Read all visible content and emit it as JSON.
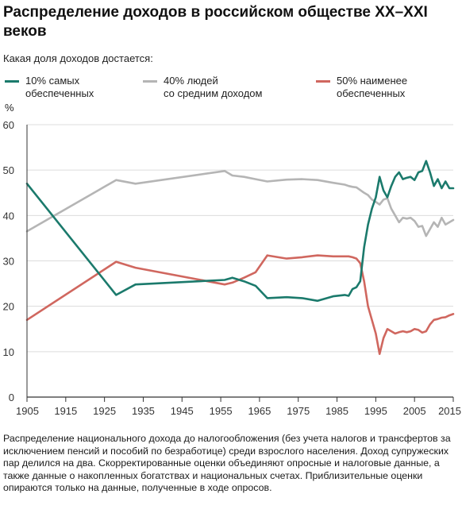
{
  "title": "Распределение доходов в российском обществе XX–XXI веков",
  "subtitle": "Какая доля доходов достается:",
  "unit": "%",
  "note": "Распределение национального дохода до налогообложения (без учета налогов и трансфертов за исключением пенсий и пособий по безработице) среди взрослого населения. Доход супружеских пар делился на два. Скорректированные оценки объединяют опросные и налоговые данные, а также данные о накопленных богатствах и национальных счетах. Приблизительные оценки опираются только на данные, полученные в ходе опросов.",
  "chart_data": {
    "type": "line",
    "ylabel": "%",
    "xlim": [
      1905,
      2015
    ],
    "ylim": [
      0,
      60
    ],
    "x_ticks": [
      "1905",
      "1915",
      "1925",
      "1935",
      "1945",
      "1955",
      "1965",
      "1975",
      "1985",
      "1995",
      "2005",
      "2015"
    ],
    "y_ticks": [
      "0",
      "10",
      "20",
      "30",
      "40",
      "50",
      "60"
    ],
    "grid": "horizontal",
    "legend": "top",
    "series": [
      {
        "name": "10% самых\nобеспеченных",
        "color": "#1b7a6c",
        "x": [
          1905,
          1928,
          1933,
          1956,
          1958,
          1961,
          1964,
          1967,
          1972,
          1976,
          1980,
          1984,
          1987,
          1988,
          1989,
          1990,
          1991,
          1992,
          1993,
          1994,
          1995,
          1996,
          1997,
          1998,
          1999,
          2000,
          2001,
          2002,
          2003,
          2004,
          2005,
          2006,
          2007,
          2008,
          2009,
          2010,
          2011,
          2012,
          2013,
          2014,
          2015
        ],
        "y": [
          47,
          22.5,
          24.8,
          25.8,
          26.3,
          25.5,
          24.5,
          21.8,
          22,
          21.8,
          21.2,
          22.2,
          22.5,
          22.3,
          23.8,
          24.2,
          25.5,
          33,
          38,
          41.5,
          44,
          48.5,
          45.5,
          44,
          46.5,
          48.5,
          49.5,
          48,
          48.3,
          48.5,
          47.8,
          49.5,
          49.8,
          52,
          49.5,
          46.5,
          48,
          46,
          47.5,
          46,
          46
        ]
      },
      {
        "name": "40% людей\nсо средним доходом",
        "color": "#b5b5b5",
        "x": [
          1905,
          1928,
          1933,
          1956,
          1958,
          1961,
          1964,
          1967,
          1972,
          1976,
          1980,
          1984,
          1987,
          1988,
          1989,
          1990,
          1991,
          1992,
          1993,
          1994,
          1995,
          1996,
          1997,
          1998,
          1999,
          2000,
          2001,
          2002,
          2003,
          2004,
          2005,
          2006,
          2007,
          2008,
          2009,
          2010,
          2011,
          2012,
          2013,
          2014,
          2015
        ],
        "y": [
          36.5,
          47.8,
          47,
          49.8,
          48.8,
          48.5,
          48,
          47.5,
          47.9,
          48,
          47.8,
          47.2,
          46.8,
          46.5,
          46.3,
          46.2,
          45.6,
          45,
          44.5,
          43.5,
          43,
          42.4,
          43.5,
          43.8,
          41.5,
          40,
          38.5,
          39.5,
          39.3,
          39.5,
          38.8,
          37.5,
          37.7,
          35.5,
          37,
          38.5,
          37.5,
          39.5,
          38,
          38.5,
          39
        ]
      },
      {
        "name": "50% наименее\nобеспеченных",
        "color": "#d0675f",
        "x": [
          1905,
          1928,
          1933,
          1956,
          1958,
          1961,
          1964,
          1967,
          1972,
          1976,
          1980,
          1984,
          1987,
          1988,
          1989,
          1990,
          1991,
          1992,
          1993,
          1994,
          1995,
          1996,
          1997,
          1998,
          1999,
          2000,
          2001,
          2002,
          2003,
          2004,
          2005,
          2006,
          2007,
          2008,
          2009,
          2010,
          2011,
          2012,
          2013,
          2014,
          2015
        ],
        "y": [
          17,
          29.8,
          28.5,
          24.8,
          25.2,
          26.3,
          27.5,
          31.2,
          30.5,
          30.8,
          31.2,
          31,
          31,
          31,
          30.8,
          30.5,
          29.5,
          25.5,
          20,
          17,
          14,
          9.5,
          13,
          15,
          14.5,
          14,
          14.3,
          14.5,
          14.3,
          14.5,
          15,
          14.8,
          14.2,
          14.5,
          16,
          17,
          17.2,
          17.5,
          17.6,
          18,
          18.3
        ]
      }
    ]
  }
}
